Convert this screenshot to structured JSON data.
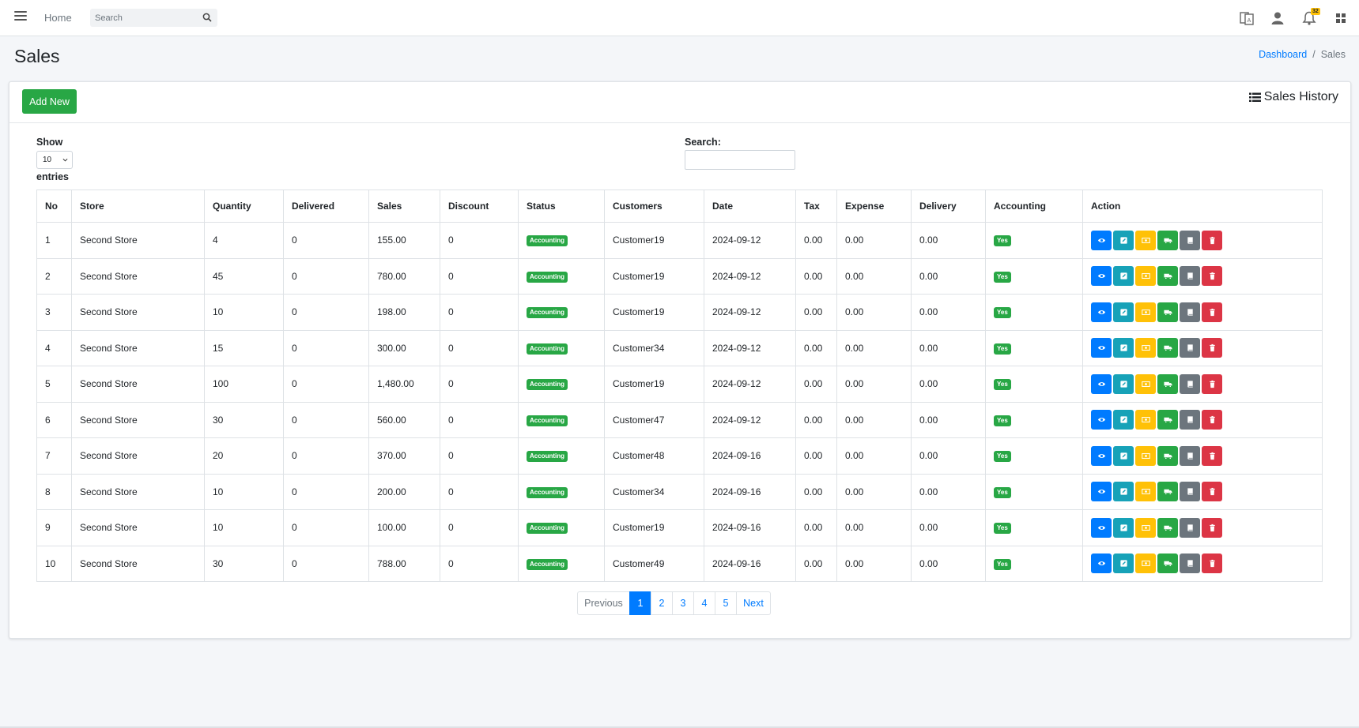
{
  "topbar": {
    "home_label": "Home",
    "search_placeholder": "Search",
    "notification_count": "32"
  },
  "page": {
    "title": "Sales"
  },
  "breadcrumb": {
    "dashboard": "Dashboard",
    "separator": "/",
    "current": "Sales"
  },
  "card": {
    "add_button": "Add New",
    "title": "Sales History"
  },
  "controls": {
    "show_label": "Show",
    "length_value": "10",
    "entries_label": "entries",
    "search_label": "Search:",
    "search_value": ""
  },
  "table": {
    "headers": [
      "No",
      "Store",
      "Quantity",
      "Delivered",
      "Sales",
      "Discount",
      "Status",
      "Customers",
      "Date",
      "Tax",
      "Expense",
      "Delivery",
      "Accounting",
      "Action"
    ],
    "rows": [
      {
        "no": "1",
        "store": "Second Store",
        "qty": "4",
        "delivered": "0",
        "sales": "155.00",
        "discount": "0",
        "status": "Accounting",
        "customer": "Customer19",
        "date": "2024-09-12",
        "tax": "0.00",
        "expense": "0.00",
        "delivery": "0.00",
        "accounting": "Yes"
      },
      {
        "no": "2",
        "store": "Second Store",
        "qty": "45",
        "delivered": "0",
        "sales": "780.00",
        "discount": "0",
        "status": "Accounting",
        "customer": "Customer19",
        "date": "2024-09-12",
        "tax": "0.00",
        "expense": "0.00",
        "delivery": "0.00",
        "accounting": "Yes"
      },
      {
        "no": "3",
        "store": "Second Store",
        "qty": "10",
        "delivered": "0",
        "sales": "198.00",
        "discount": "0",
        "status": "Accounting",
        "customer": "Customer19",
        "date": "2024-09-12",
        "tax": "0.00",
        "expense": "0.00",
        "delivery": "0.00",
        "accounting": "Yes"
      },
      {
        "no": "4",
        "store": "Second Store",
        "qty": "15",
        "delivered": "0",
        "sales": "300.00",
        "discount": "0",
        "status": "Accounting",
        "customer": "Customer34",
        "date": "2024-09-12",
        "tax": "0.00",
        "expense": "0.00",
        "delivery": "0.00",
        "accounting": "Yes"
      },
      {
        "no": "5",
        "store": "Second Store",
        "qty": "100",
        "delivered": "0",
        "sales": "1,480.00",
        "discount": "0",
        "status": "Accounting",
        "customer": "Customer19",
        "date": "2024-09-12",
        "tax": "0.00",
        "expense": "0.00",
        "delivery": "0.00",
        "accounting": "Yes"
      },
      {
        "no": "6",
        "store": "Second Store",
        "qty": "30",
        "delivered": "0",
        "sales": "560.00",
        "discount": "0",
        "status": "Accounting",
        "customer": "Customer47",
        "date": "2024-09-12",
        "tax": "0.00",
        "expense": "0.00",
        "delivery": "0.00",
        "accounting": "Yes"
      },
      {
        "no": "7",
        "store": "Second Store",
        "qty": "20",
        "delivered": "0",
        "sales": "370.00",
        "discount": "0",
        "status": "Accounting",
        "customer": "Customer48",
        "date": "2024-09-16",
        "tax": "0.00",
        "expense": "0.00",
        "delivery": "0.00",
        "accounting": "Yes"
      },
      {
        "no": "8",
        "store": "Second Store",
        "qty": "10",
        "delivered": "0",
        "sales": "200.00",
        "discount": "0",
        "status": "Accounting",
        "customer": "Customer34",
        "date": "2024-09-16",
        "tax": "0.00",
        "expense": "0.00",
        "delivery": "0.00",
        "accounting": "Yes"
      },
      {
        "no": "9",
        "store": "Second Store",
        "qty": "10",
        "delivered": "0",
        "sales": "100.00",
        "discount": "0",
        "status": "Accounting",
        "customer": "Customer19",
        "date": "2024-09-16",
        "tax": "0.00",
        "expense": "0.00",
        "delivery": "0.00",
        "accounting": "Yes"
      },
      {
        "no": "10",
        "store": "Second Store",
        "qty": "30",
        "delivered": "0",
        "sales": "788.00",
        "discount": "0",
        "status": "Accounting",
        "customer": "Customer49",
        "date": "2024-09-16",
        "tax": "0.00",
        "expense": "0.00",
        "delivery": "0.00",
        "accounting": "Yes"
      }
    ],
    "row_actions": [
      "view-icon",
      "edit-icon",
      "cash-icon",
      "truck-icon",
      "book-icon",
      "trash-icon"
    ]
  },
  "pagination": {
    "previous": "Previous",
    "pages": [
      "1",
      "2",
      "3",
      "4",
      "5"
    ],
    "active_page": "1",
    "next": "Next"
  },
  "colors": {
    "primary": "#007bff",
    "success": "#28a745",
    "info": "#17a2b8",
    "warning": "#ffc107",
    "secondary": "#6c757d",
    "danger": "#dc3545"
  }
}
